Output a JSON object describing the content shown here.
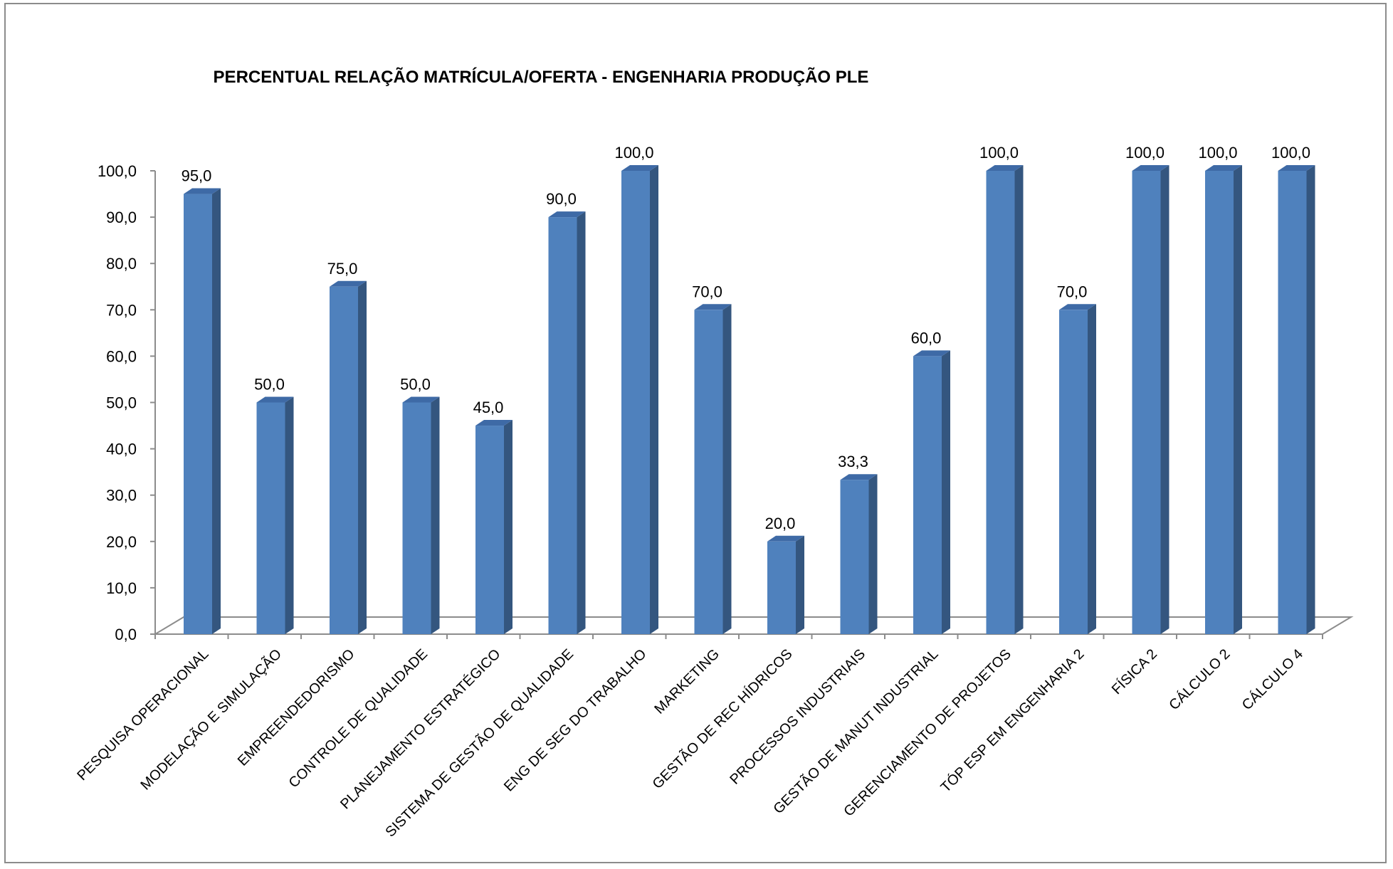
{
  "chart_data": {
    "type": "bar",
    "title": "PERCENTUAL RELAÇÃO MATRÍCULA/OFERTA - ENGENHARIA PRODUÇÃO PLE",
    "xlabel": "",
    "ylabel": "",
    "ylim": [
      0,
      100
    ],
    "yticks": [
      "0,0",
      "10,0",
      "20,0",
      "30,0",
      "40,0",
      "50,0",
      "60,0",
      "70,0",
      "80,0",
      "90,0",
      "100,0"
    ],
    "grid": false,
    "legend": "none",
    "style": "3d-column",
    "colors": {
      "bar_front": "#4f81bd",
      "bar_side": "#34567f",
      "bar_top": "#3e6aa6",
      "axis": "#8c8c8c"
    },
    "categories": [
      "PESQUISA OPERACIONAL",
      "MODELAÇÃO E SIMULAÇÃO",
      "EMPREENDEDORISMO",
      "CONTROLE DE QUALIDADE",
      "PLANEJAMENTO ESTRATÉGICO",
      "SISTEMA DE GESTÃO DE QUALIDADE",
      "ENG DE SEG DO TRABALHO",
      "MARKETING",
      "GESTÃO DE REC HÍDRICOS",
      "PROCESSOS INDUSTRIAIS",
      "GESTÃO DE MANUT INDUSTRIAL",
      "GERENCIAMENTO DE PROJETOS",
      "TÓP ESP EM ENGENHARIA 2",
      "FÍSICA 2",
      "CÁLCULO 2",
      "CÁLCULO 4"
    ],
    "values": [
      95.0,
      50.0,
      75.0,
      50.0,
      45.0,
      90.0,
      100.0,
      70.0,
      20.0,
      33.3,
      60.0,
      100.0,
      70.0,
      100.0,
      100.0,
      100.0
    ],
    "data_labels": [
      "95,0",
      "50,0",
      "75,0",
      "50,0",
      "45,0",
      "90,0",
      "100,0",
      "70,0",
      "20,0",
      "33,3",
      "60,0",
      "100,0",
      "70,0",
      "100,0",
      "100,0",
      "100,0"
    ]
  }
}
